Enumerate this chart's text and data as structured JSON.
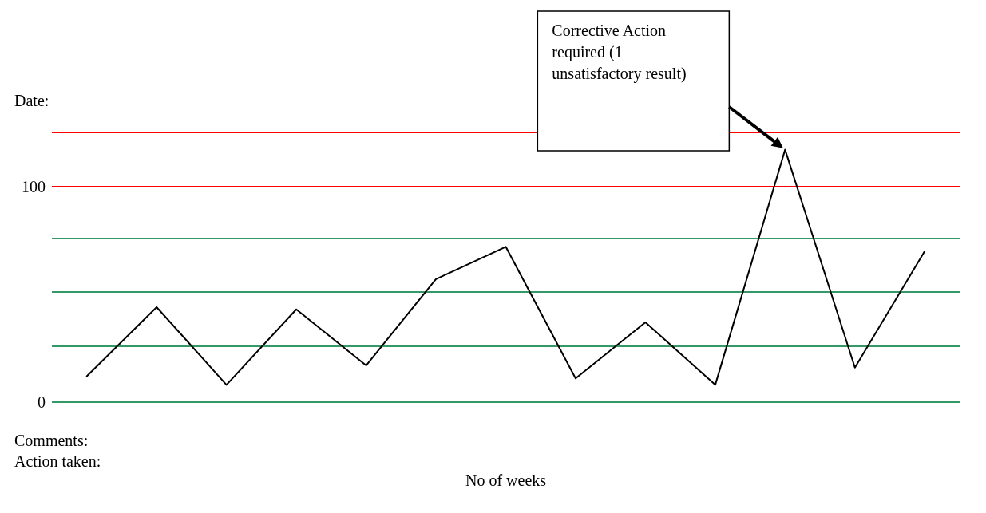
{
  "chart_data": {
    "type": "line",
    "xlabel": "No of weeks",
    "categories": [
      null,
      null,
      null,
      null,
      null,
      null,
      null,
      null,
      null,
      null,
      null,
      null,
      null
    ],
    "series": [
      {
        "color": "#000000",
        "values": [
          12,
          44,
          8,
          43,
          17,
          57,
          72,
          11,
          37,
          8,
          117,
          16,
          70
        ]
      }
    ],
    "ylim": [
      0,
      125
    ],
    "yticks": [
      0,
      100
    ],
    "grid": false,
    "marker": "none",
    "line_style": "solid",
    "ref_lines": [
      {
        "axis": "y",
        "value": 125,
        "color": "#ff0000"
      },
      {
        "axis": "y",
        "value": 100,
        "color": "#ff0000"
      },
      {
        "axis": "y",
        "value": 76,
        "color": "#339966"
      },
      {
        "axis": "y",
        "value": 51,
        "color": "#339966"
      },
      {
        "axis": "y",
        "value": 26,
        "color": "#339966"
      },
      {
        "axis": "y",
        "value": 0,
        "color": "#339966"
      }
    ],
    "annotations": [
      "Date:",
      "Comments:",
      "Action taken:",
      "Corrective Action required (1 unsatisfactory result)"
    ]
  }
}
